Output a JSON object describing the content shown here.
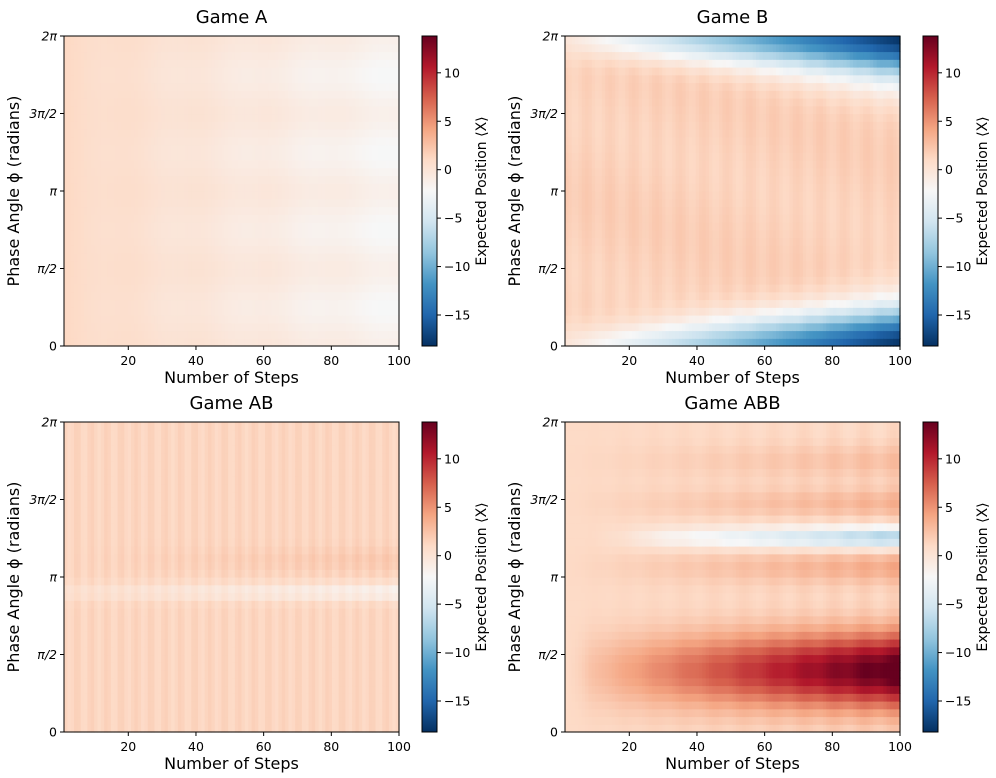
{
  "figure": {
    "colormap": "RdBu_r",
    "colormap_stops": [
      "#053061",
      "#2166ac",
      "#4393c3",
      "#92c5de",
      "#d1e5f0",
      "#f7f7f7",
      "#fddbc7",
      "#f4a582",
      "#d6604d",
      "#b2182b",
      "#67001f"
    ],
    "vmin": -18.2,
    "vmax": 13.8
  },
  "chart_data": [
    {
      "type": "heatmap",
      "title": "Game A",
      "xlabel": "Number of Steps",
      "ylabel": "Phase Angle ϕ (radians)",
      "xlim": [
        1,
        100
      ],
      "ylim": [
        0,
        6.2832
      ],
      "xticks": [
        20,
        40,
        60,
        80,
        100
      ],
      "yticks": [
        "0",
        "π/2",
        "π",
        "3π/2",
        "2π"
      ],
      "colorbar_label": "Expected Position ⟨X⟩",
      "colorbar_ticks": [
        10,
        5,
        0,
        -5,
        -10,
        -15
      ],
      "description": "smooth, from slightly positive (~1) at left to ~-3 at right, most negative near π/2 and 3π/2",
      "value_range": [
        -3.2,
        1.2
      ]
    },
    {
      "type": "heatmap",
      "title": "Game B",
      "xlabel": "Number of Steps",
      "ylabel": "Phase Angle ϕ (radians)",
      "xlim": [
        1,
        100
      ],
      "ylim": [
        0,
        6.2832
      ],
      "xticks": [
        20,
        40,
        60,
        80,
        100
      ],
      "yticks": [
        "0",
        "π/2",
        "π",
        "3π/2",
        "2π"
      ],
      "colorbar_label": "Expected Position ⟨X⟩",
      "colorbar_ticks": [
        10,
        5,
        0,
        -5,
        -10,
        -15
      ],
      "description": "mild positive (~1.5) across middle band, strongly negative near ϕ=0 and ϕ=2π growing to ~-18 at 100 steps",
      "value_range": [
        -18.2,
        2.0
      ]
    },
    {
      "type": "heatmap",
      "title": "Game AB",
      "xlabel": "Number of Steps",
      "ylabel": "Phase Angle ϕ (radians)",
      "xlim": [
        1,
        100
      ],
      "ylim": [
        0,
        6.2832
      ],
      "xticks": [
        20,
        40,
        60,
        80,
        100
      ],
      "yticks": [
        "0",
        "π/2",
        "π",
        "3π/2",
        "2π"
      ],
      "colorbar_label": "Expected Position ⟨X⟩",
      "colorbar_ticks": [
        10,
        5,
        0,
        -5,
        -10,
        -15
      ],
      "description": "mostly slightly positive (~1.5) with vertical striping, slightly negative band just below π",
      "value_range": [
        -1.5,
        2.5
      ]
    },
    {
      "type": "heatmap",
      "title": "Game ABB",
      "xlabel": "Number of Steps",
      "ylabel": "Phase Angle ϕ (radians)",
      "xlim": [
        1,
        100
      ],
      "ylim": [
        0,
        6.2832
      ],
      "xticks": [
        20,
        40,
        60,
        80,
        100
      ],
      "yticks": [
        "0",
        "π/2",
        "π",
        "3π/2",
        "2π"
      ],
      "colorbar_label": "Expected Position ⟨X⟩",
      "colorbar_ticks": [
        10,
        5,
        0,
        -5,
        -10,
        -15
      ],
      "description": "strong positive band near π/2 reaching ~13.8 at 100 steps, negative band near 5π/4 reaching ~-8, mildly positive elsewhere",
      "value_range": [
        -8.5,
        13.8
      ]
    }
  ]
}
